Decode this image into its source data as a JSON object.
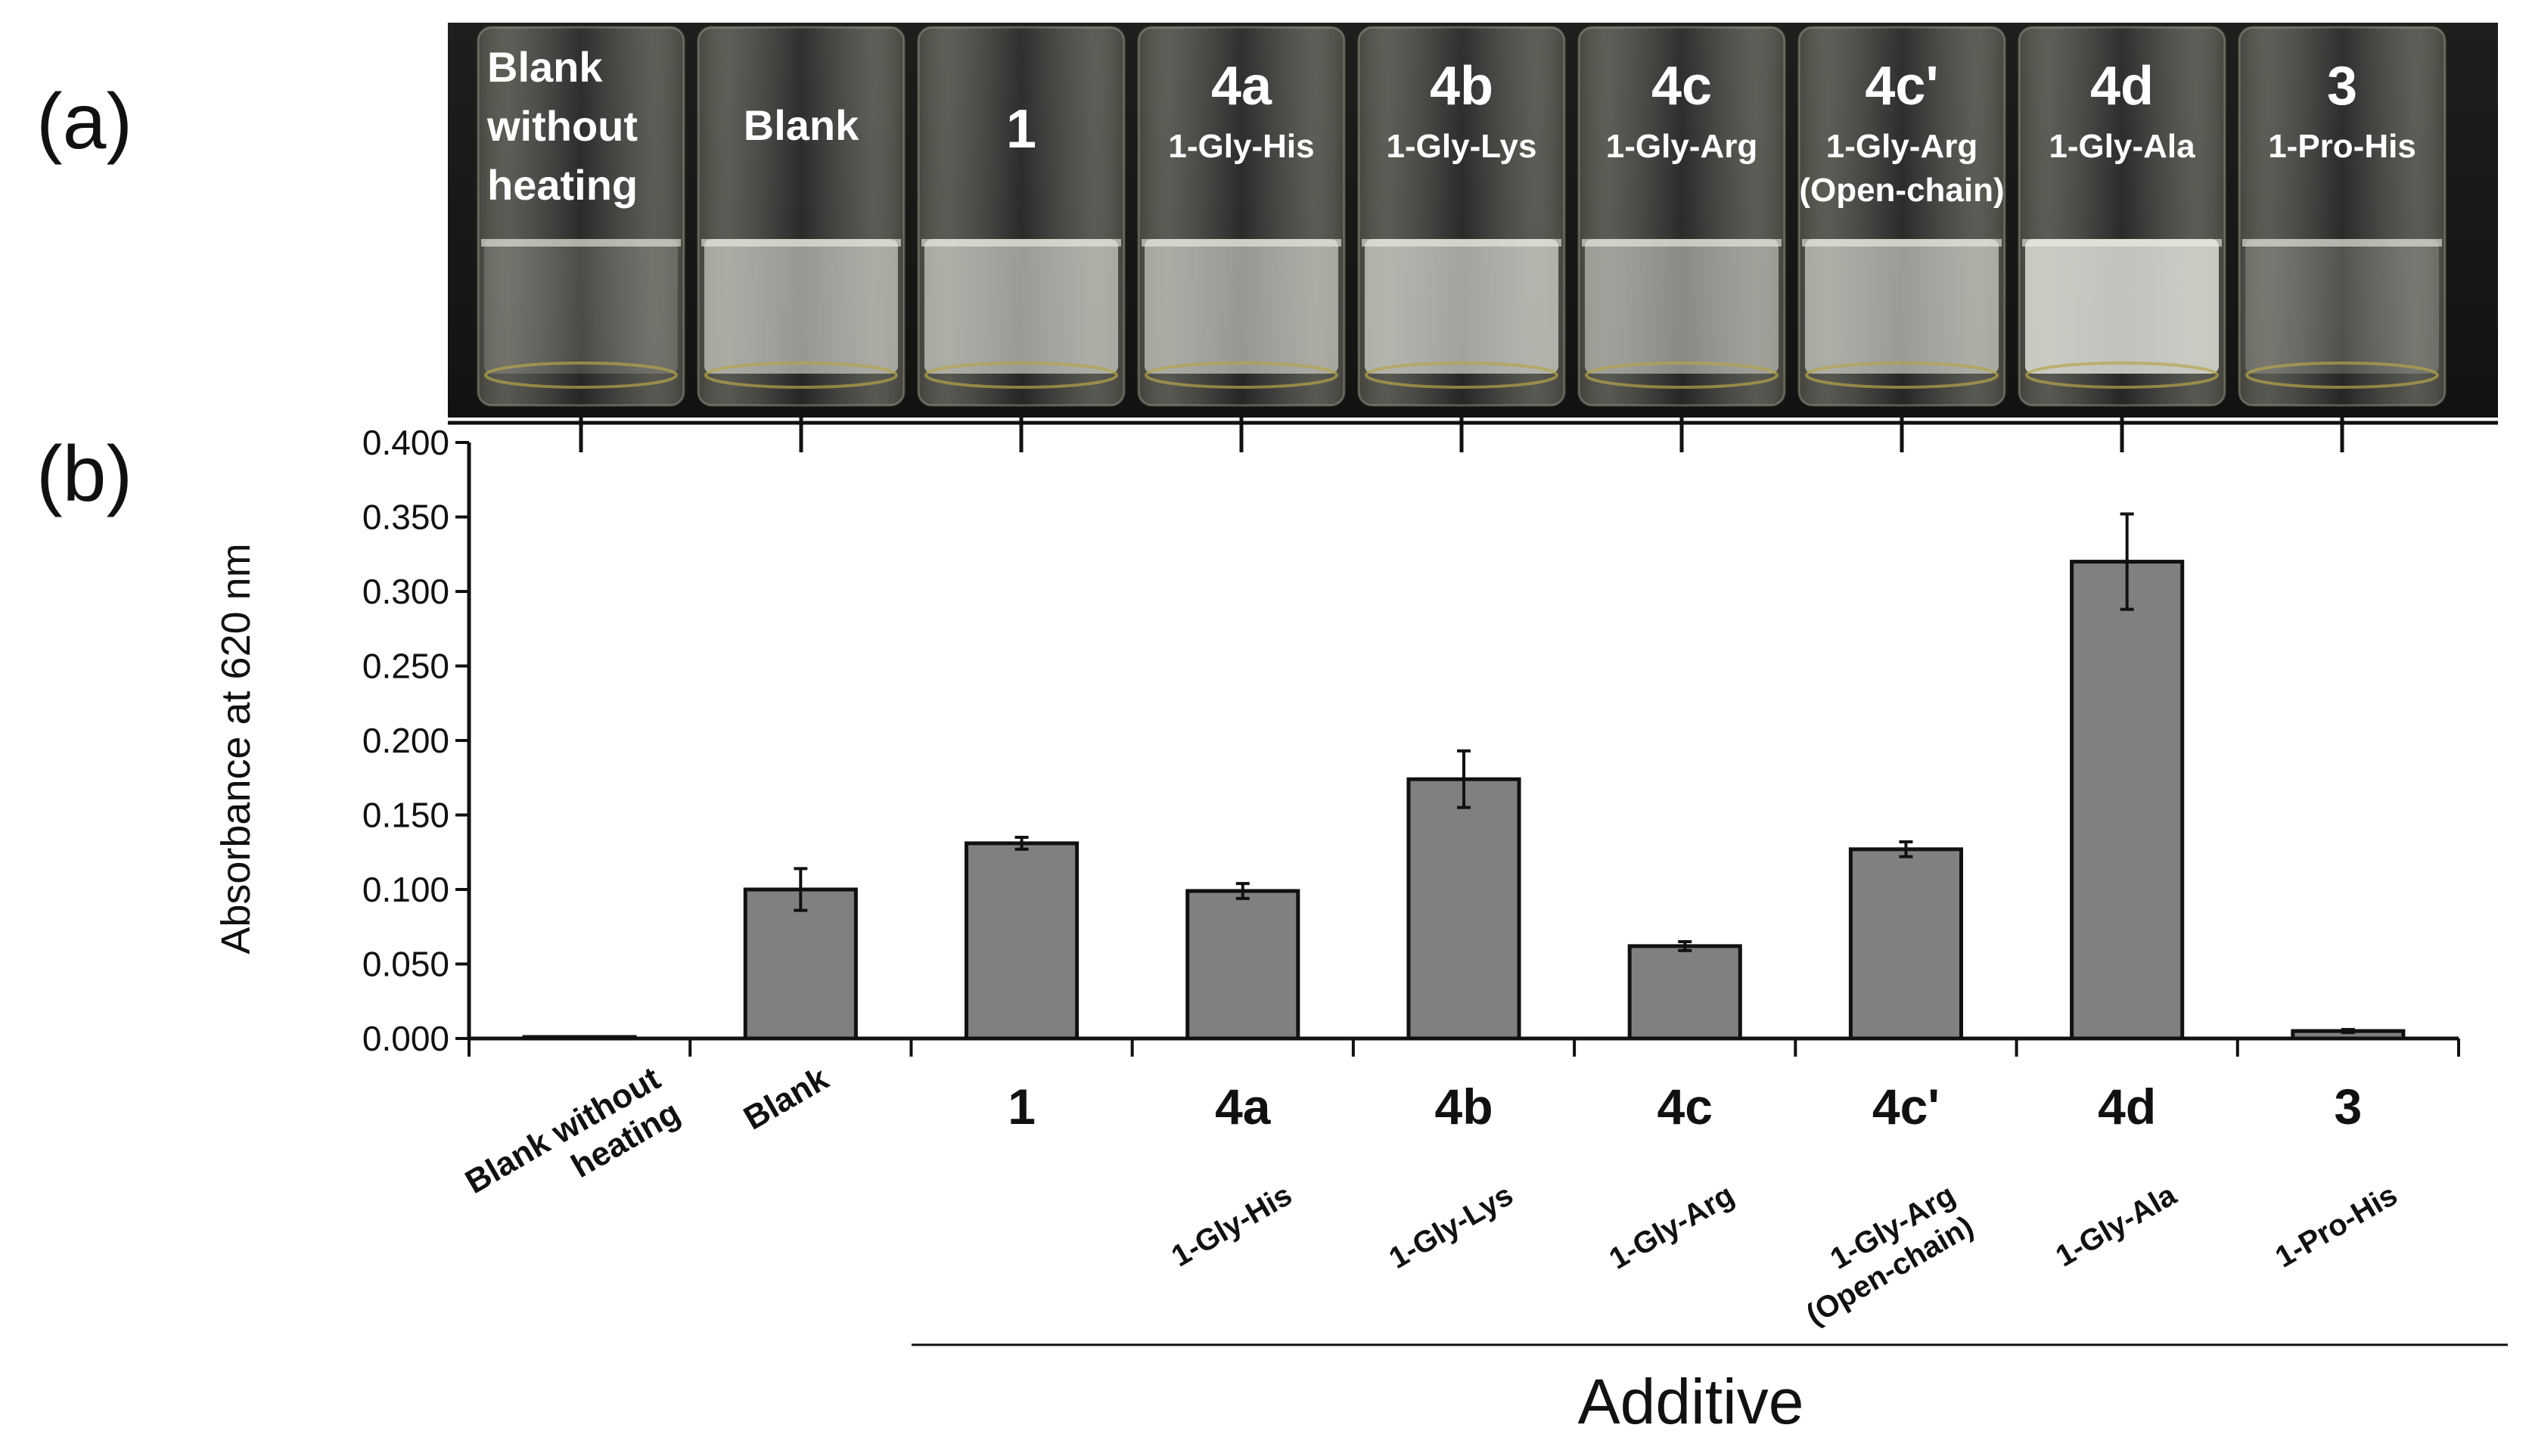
{
  "panel_labels": {
    "a": "(a)",
    "b": "(b)"
  },
  "photo": {
    "vials": [
      {
        "lines": [
          "Blank",
          "without",
          "heating"
        ],
        "sub": [],
        "turbidity": 0.05
      },
      {
        "lines": [
          "Blank"
        ],
        "sub": [],
        "turbidity": 0.6
      },
      {
        "lines": [
          "1"
        ],
        "sub": [],
        "turbidity": 0.62
      },
      {
        "lines": [
          "4a"
        ],
        "sub": [
          "1-Gly-His"
        ],
        "turbidity": 0.6
      },
      {
        "lines": [
          "4b"
        ],
        "sub": [
          "1-Gly-Lys"
        ],
        "turbidity": 0.68
      },
      {
        "lines": [
          "4c"
        ],
        "sub": [
          "1-Gly-Arg"
        ],
        "turbidity": 0.5
      },
      {
        "lines": [
          "4c'"
        ],
        "sub": [
          "1-Gly-Arg",
          "(Open-chain)"
        ],
        "turbidity": 0.62
      },
      {
        "lines": [
          "4d"
        ],
        "sub": [
          "1-Gly-Ala"
        ],
        "turbidity": 0.9
      },
      {
        "lines": [
          "3"
        ],
        "sub": [
          "1-Pro-His"
        ],
        "turbidity": 0.1
      }
    ]
  },
  "chart_data": {
    "type": "bar",
    "categories": [
      "Blank without heating",
      "Blank",
      "1",
      "4a",
      "4b",
      "4c",
      "4c'",
      "4d",
      "3"
    ],
    "category_labels": [
      {
        "main": [],
        "sub": [
          "Blank without",
          "heating"
        ]
      },
      {
        "main": [],
        "sub": [
          "Blank"
        ]
      },
      {
        "main": [
          "1"
        ],
        "sub": []
      },
      {
        "main": [
          "4a"
        ],
        "sub": [
          "1-Gly-His"
        ]
      },
      {
        "main": [
          "4b"
        ],
        "sub": [
          "1-Gly-Lys"
        ]
      },
      {
        "main": [
          "4c"
        ],
        "sub": [
          "1-Gly-Arg"
        ]
      },
      {
        "main": [
          "4c'"
        ],
        "sub": [
          "1-Gly-Arg",
          "(Open-chain)"
        ]
      },
      {
        "main": [
          "4d"
        ],
        "sub": [
          "1-Gly-Ala"
        ]
      },
      {
        "main": [
          "3"
        ],
        "sub": [
          "1-Pro-His"
        ]
      }
    ],
    "values": [
      0.001,
      0.1,
      0.131,
      0.099,
      0.174,
      0.062,
      0.127,
      0.32,
      0.005
    ],
    "errors": [
      0.0,
      0.014,
      0.004,
      0.005,
      0.019,
      0.003,
      0.005,
      0.032,
      0.001
    ],
    "ylabel": "Absorbance at 620 nm",
    "xlabel": "Additive",
    "ylim": [
      0,
      0.4
    ],
    "yticks": [
      "0.000",
      "0.050",
      "0.100",
      "0.150",
      "0.200",
      "0.250",
      "0.300",
      "0.350",
      "0.400"
    ],
    "bar_color": "#808080",
    "grid": false
  }
}
